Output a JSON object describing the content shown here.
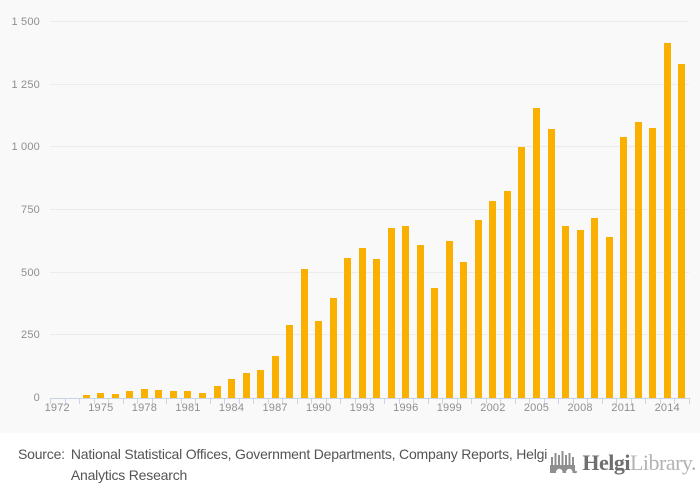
{
  "chart_data": {
    "type": "bar",
    "title": "",
    "xlabel": "",
    "ylabel": "",
    "x": [
      1972,
      1973,
      1974,
      1975,
      1976,
      1977,
      1978,
      1979,
      1980,
      1981,
      1982,
      1983,
      1984,
      1985,
      1986,
      1987,
      1988,
      1989,
      1990,
      1991,
      1992,
      1993,
      1994,
      1995,
      1996,
      1997,
      1998,
      1999,
      2000,
      2001,
      2002,
      2003,
      2004,
      2005,
      2006,
      2007,
      2008,
      2009,
      2010,
      2011,
      2012,
      2013,
      2014,
      2015
    ],
    "values": [
      0,
      0,
      10,
      20,
      17,
      26,
      37,
      30,
      27,
      27,
      20,
      49,
      75,
      100,
      113,
      167,
      290,
      516,
      308,
      398,
      557,
      598,
      554,
      678,
      687,
      610,
      438,
      626,
      541,
      710,
      786,
      827,
      1003,
      1155,
      1072,
      685,
      670,
      719,
      643,
      1043,
      1100,
      1077,
      1415,
      1333
    ],
    "ylim": [
      0,
      1500
    ],
    "yticks": [
      0,
      250,
      500,
      750,
      1000,
      1250,
      1500
    ],
    "ytick_labels": [
      "0",
      "250",
      "500",
      "750",
      "1 000",
      "1 250",
      "1 500"
    ],
    "xtick_labels": [
      "1972",
      "1975",
      "1978",
      "1981",
      "1984",
      "1987",
      "1990",
      "1993",
      "1996",
      "1999",
      "2002",
      "2005",
      "2008",
      "2011",
      "2014"
    ],
    "xtick_label_interval": 3,
    "grid": true,
    "legend": false,
    "bar_color": "#f9b000"
  },
  "footer": {
    "source_label": "Source:",
    "source_text": "National Statistical Offices, Government Departments, Company Reports, Helgi Analytics Research",
    "logo": {
      "icon": "bridge-icon",
      "name_primary": "Helgi",
      "name_secondary": "Library."
    }
  },
  "colors": {
    "bar": "#f9b000",
    "plot_bg": "#f9f9f9",
    "grid": "#ececec",
    "axis": "#c9d3e6",
    "tick_label": "#8f8f8f",
    "source_text": "#545454",
    "logo_primary": "#6f6f6f",
    "logo_secondary": "#b3b3b3"
  }
}
